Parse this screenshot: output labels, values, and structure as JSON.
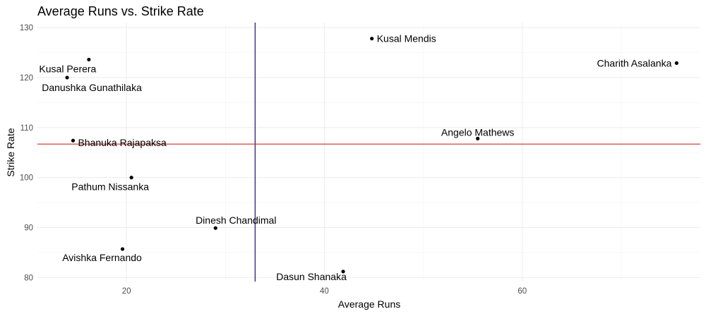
{
  "chart_data": {
    "type": "scatter",
    "title": "Average Runs vs. Strike Rate",
    "xlabel": "Average Runs",
    "ylabel": "Strike Rate",
    "xlim": [
      11,
      78
    ],
    "ylim": [
      79.2,
      131.0
    ],
    "x_ticks": [
      20,
      40,
      60
    ],
    "y_ticks": [
      80,
      90,
      100,
      110,
      120,
      130
    ],
    "grid": true,
    "points": [
      {
        "label": "Kusal Mendis",
        "x": 44.8,
        "y": 127.8
      },
      {
        "label": "Charith Asalanka",
        "x": 75.6,
        "y": 122.9
      },
      {
        "label": "Kusal Perera",
        "x": 16.2,
        "y": 123.6
      },
      {
        "label": "Danushka Gunathilaka",
        "x": 14.0,
        "y": 120.0
      },
      {
        "label": "Angelo Mathews",
        "x": 55.5,
        "y": 107.8
      },
      {
        "label": "Bhanuka Rajapaksa",
        "x": 14.6,
        "y": 107.4
      },
      {
        "label": "Pathum Nissanka",
        "x": 20.5,
        "y": 100.0
      },
      {
        "label": "Dinesh Chandimal",
        "x": 29.0,
        "y": 89.9
      },
      {
        "label": "Avishka Fernando",
        "x": 19.6,
        "y": 85.7
      },
      {
        "label": "Dasun Shanaka",
        "x": 41.9,
        "y": 81.2
      }
    ],
    "reference_lines": [
      {
        "orientation": "vertical",
        "value": 33.0,
        "color": "#1a0d66"
      },
      {
        "orientation": "horizontal",
        "value": 106.7,
        "color": "#d62728"
      }
    ]
  }
}
